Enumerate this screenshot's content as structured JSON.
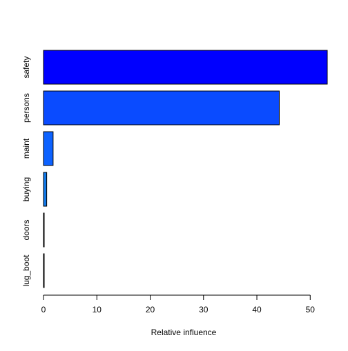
{
  "chart_data": {
    "type": "bar",
    "orientation": "horizontal",
    "title": "",
    "xlabel": "Relative influence",
    "ylabel": "",
    "categories": [
      "safety",
      "persons",
      "maint",
      "buying",
      "doors",
      "lug_boot"
    ],
    "values": [
      53.2,
      44.2,
      1.8,
      0.6,
      0.1,
      0.1
    ],
    "colors": [
      "#0000FF",
      "#0A4BFF",
      "#0D62FF",
      "#1177E6",
      "#1F86DD",
      "#2F95DD"
    ],
    "xlim": [
      0,
      53.2
    ],
    "xticks": [
      0,
      10,
      20,
      30,
      40,
      50
    ],
    "grid": false,
    "legend": "none"
  }
}
